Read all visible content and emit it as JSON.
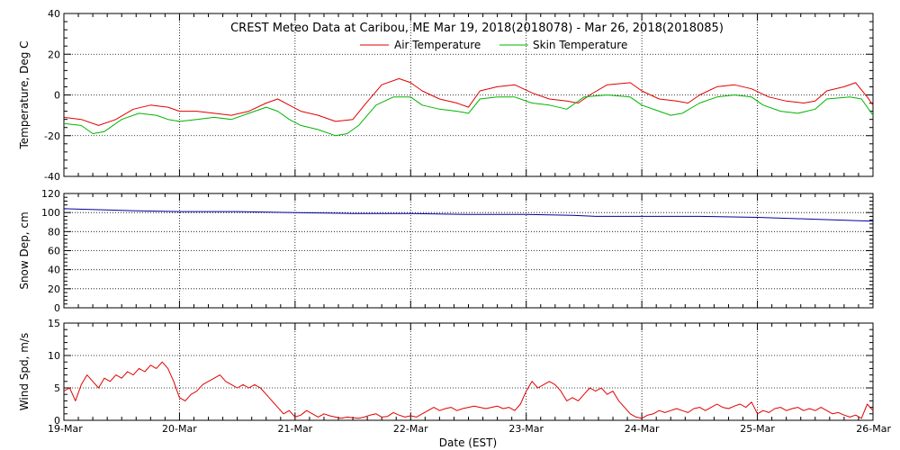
{
  "title": "CREST Meteo Data at Caribou, ME   Mar 19, 2018(2018078) - Mar 26, 2018(2018085)",
  "x_axis": {
    "label": "Date (EST)",
    "range_days": [
      0,
      7
    ],
    "ticks": [
      {
        "day": 0,
        "label": "19-Mar"
      },
      {
        "day": 1,
        "label": "20-Mar"
      },
      {
        "day": 2,
        "label": "21-Mar"
      },
      {
        "day": 3,
        "label": "22-Mar"
      },
      {
        "day": 4,
        "label": "23-Mar"
      },
      {
        "day": 5,
        "label": "24-Mar"
      },
      {
        "day": 6,
        "label": "25-Mar"
      },
      {
        "day": 7,
        "label": "26-Mar"
      }
    ]
  },
  "colors": {
    "air": "#e00000",
    "skin": "#00b400",
    "snow": "#0000a0",
    "wind": "#e00000",
    "grid": "#000000"
  },
  "chart_data": [
    {
      "type": "line",
      "panel": "temperature",
      "ylabel": "Temperature, Deg C",
      "ylim": [
        -40,
        40
      ],
      "yticks": [
        -40,
        -20,
        0,
        20,
        40
      ],
      "legend": [
        "Air Temperature",
        "Skin Temperature"
      ],
      "legend_placement": "top-center",
      "grid": true,
      "series": [
        {
          "name": "Air Temperature",
          "color": "#e00000",
          "points": [
            [
              0,
              -11
            ],
            [
              0.15,
              -12
            ],
            [
              0.3,
              -15
            ],
            [
              0.45,
              -12
            ],
            [
              0.6,
              -7
            ],
            [
              0.75,
              -5
            ],
            [
              0.9,
              -6
            ],
            [
              1.0,
              -8
            ],
            [
              1.15,
              -8
            ],
            [
              1.3,
              -9
            ],
            [
              1.45,
              -10
            ],
            [
              1.6,
              -8
            ],
            [
              1.75,
              -4
            ],
            [
              1.85,
              -2
            ],
            [
              1.95,
              -5
            ],
            [
              2.05,
              -8
            ],
            [
              2.2,
              -10
            ],
            [
              2.35,
              -13
            ],
            [
              2.5,
              -12
            ],
            [
              2.6,
              -5
            ],
            [
              2.75,
              5
            ],
            [
              2.9,
              8
            ],
            [
              3.0,
              6
            ],
            [
              3.1,
              2
            ],
            [
              3.25,
              -2
            ],
            [
              3.4,
              -4
            ],
            [
              3.5,
              -6
            ],
            [
              3.6,
              2
            ],
            [
              3.75,
              4
            ],
            [
              3.9,
              5
            ],
            [
              4.05,
              1
            ],
            [
              4.2,
              -2
            ],
            [
              4.35,
              -3
            ],
            [
              4.45,
              -4
            ],
            [
              4.55,
              0
            ],
            [
              4.7,
              5
            ],
            [
              4.9,
              6
            ],
            [
              5.0,
              2
            ],
            [
              5.15,
              -2
            ],
            [
              5.3,
              -3
            ],
            [
              5.4,
              -4
            ],
            [
              5.5,
              0
            ],
            [
              5.65,
              4
            ],
            [
              5.8,
              5
            ],
            [
              5.95,
              3
            ],
            [
              6.1,
              -1
            ],
            [
              6.25,
              -3
            ],
            [
              6.4,
              -4
            ],
            [
              6.5,
              -3
            ],
            [
              6.6,
              2
            ],
            [
              6.75,
              4
            ],
            [
              6.85,
              6
            ],
            [
              6.95,
              -1
            ],
            [
              7.0,
              -5
            ]
          ]
        },
        {
          "name": "Skin Temperature",
          "color": "#00b400",
          "points": [
            [
              0,
              -14
            ],
            [
              0.15,
              -15
            ],
            [
              0.25,
              -19
            ],
            [
              0.35,
              -18
            ],
            [
              0.5,
              -12
            ],
            [
              0.65,
              -9
            ],
            [
              0.8,
              -10
            ],
            [
              0.9,
              -12
            ],
            [
              1.0,
              -13
            ],
            [
              1.15,
              -12
            ],
            [
              1.3,
              -11
            ],
            [
              1.45,
              -12
            ],
            [
              1.6,
              -9
            ],
            [
              1.75,
              -6
            ],
            [
              1.85,
              -8
            ],
            [
              1.95,
              -12
            ],
            [
              2.05,
              -15
            ],
            [
              2.2,
              -17
            ],
            [
              2.35,
              -20
            ],
            [
              2.45,
              -19
            ],
            [
              2.55,
              -15
            ],
            [
              2.7,
              -5
            ],
            [
              2.85,
              -1
            ],
            [
              3.0,
              -1
            ],
            [
              3.1,
              -5
            ],
            [
              3.25,
              -7
            ],
            [
              3.4,
              -8
            ],
            [
              3.5,
              -9
            ],
            [
              3.6,
              -2
            ],
            [
              3.75,
              -1
            ],
            [
              3.9,
              -1
            ],
            [
              4.05,
              -4
            ],
            [
              4.2,
              -5
            ],
            [
              4.35,
              -7
            ],
            [
              4.5,
              -1
            ],
            [
              4.7,
              0
            ],
            [
              4.9,
              -1
            ],
            [
              5.0,
              -5
            ],
            [
              5.15,
              -8
            ],
            [
              5.25,
              -10
            ],
            [
              5.35,
              -9
            ],
            [
              5.5,
              -4
            ],
            [
              5.65,
              -1
            ],
            [
              5.8,
              0
            ],
            [
              5.95,
              -1
            ],
            [
              6.05,
              -5
            ],
            [
              6.2,
              -8
            ],
            [
              6.35,
              -9
            ],
            [
              6.5,
              -7
            ],
            [
              6.6,
              -2
            ],
            [
              6.8,
              -1
            ],
            [
              6.9,
              -2
            ],
            [
              7.0,
              -10
            ]
          ]
        }
      ]
    },
    {
      "type": "line",
      "panel": "snow_depth",
      "ylabel": "Snow Dep, cm",
      "ylim": [
        0,
        120
      ],
      "yticks": [
        0,
        20,
        40,
        60,
        80,
        100,
        120
      ],
      "grid": true,
      "series": [
        {
          "color": "#0000a0",
          "points": [
            [
              0,
              104
            ],
            [
              0.3,
              103
            ],
            [
              0.6,
              102
            ],
            [
              1.0,
              101
            ],
            [
              1.5,
              101
            ],
            [
              2.0,
              100
            ],
            [
              2.5,
              99
            ],
            [
              3.0,
              99
            ],
            [
              3.5,
              98
            ],
            [
              4.0,
              98
            ],
            [
              4.4,
              97
            ],
            [
              4.6,
              96
            ],
            [
              5.0,
              96
            ],
            [
              5.5,
              96
            ],
            [
              6.0,
              95
            ],
            [
              6.5,
              93
            ],
            [
              7.0,
              91
            ]
          ]
        }
      ]
    },
    {
      "type": "line",
      "panel": "wind_speed",
      "ylabel": "Wind Spd, m/s",
      "ylim": [
        0,
        15
      ],
      "yticks": [
        0,
        5,
        10,
        15
      ],
      "grid": true,
      "series": [
        {
          "color": "#e00000",
          "points": [
            [
              0,
              4.5
            ],
            [
              0.05,
              5
            ],
            [
              0.1,
              3
            ],
            [
              0.15,
              5.5
            ],
            [
              0.2,
              7
            ],
            [
              0.25,
              6
            ],
            [
              0.3,
              5
            ],
            [
              0.35,
              6.5
            ],
            [
              0.4,
              6
            ],
            [
              0.45,
              7
            ],
            [
              0.5,
              6.5
            ],
            [
              0.55,
              7.5
            ],
            [
              0.6,
              7
            ],
            [
              0.65,
              8
            ],
            [
              0.7,
              7.5
            ],
            [
              0.75,
              8.5
            ],
            [
              0.8,
              8
            ],
            [
              0.85,
              9
            ],
            [
              0.9,
              8
            ],
            [
              0.95,
              6
            ],
            [
              1.0,
              3.5
            ],
            [
              1.05,
              3
            ],
            [
              1.1,
              4
            ],
            [
              1.15,
              4.5
            ],
            [
              1.2,
              5.5
            ],
            [
              1.25,
              6
            ],
            [
              1.3,
              6.5
            ],
            [
              1.35,
              7
            ],
            [
              1.4,
              6
            ],
            [
              1.45,
              5.5
            ],
            [
              1.5,
              5
            ],
            [
              1.55,
              5.5
            ],
            [
              1.6,
              5
            ],
            [
              1.65,
              5.5
            ],
            [
              1.7,
              5
            ],
            [
              1.75,
              4
            ],
            [
              1.8,
              3
            ],
            [
              1.85,
              2
            ],
            [
              1.9,
              1
            ],
            [
              1.95,
              1.5
            ],
            [
              2.0,
              0.5
            ],
            [
              2.05,
              0.8
            ],
            [
              2.1,
              1.5
            ],
            [
              2.15,
              1
            ],
            [
              2.2,
              0.5
            ],
            [
              2.25,
              1
            ],
            [
              2.3,
              0.7
            ],
            [
              2.35,
              0.5
            ],
            [
              2.4,
              0.3
            ],
            [
              2.45,
              0.5
            ],
            [
              2.5,
              0.4
            ],
            [
              2.55,
              0.3
            ],
            [
              2.6,
              0.5
            ],
            [
              2.65,
              0.8
            ],
            [
              2.7,
              1
            ],
            [
              2.75,
              0.5
            ],
            [
              2.8,
              0.6
            ],
            [
              2.85,
              1.2
            ],
            [
              2.9,
              0.8
            ],
            [
              2.95,
              0.5
            ],
            [
              3.0,
              0.7
            ],
            [
              3.05,
              0.5
            ],
            [
              3.1,
              1
            ],
            [
              3.15,
              1.5
            ],
            [
              3.2,
              2
            ],
            [
              3.25,
              1.5
            ],
            [
              3.3,
              1.8
            ],
            [
              3.35,
              2
            ],
            [
              3.4,
              1.5
            ],
            [
              3.45,
              1.8
            ],
            [
              3.5,
              2
            ],
            [
              3.55,
              2.2
            ],
            [
              3.6,
              2
            ],
            [
              3.65,
              1.8
            ],
            [
              3.7,
              2
            ],
            [
              3.75,
              2.2
            ],
            [
              3.8,
              1.8
            ],
            [
              3.85,
              2
            ],
            [
              3.9,
              1.5
            ],
            [
              3.95,
              2.5
            ],
            [
              4.0,
              4.5
            ],
            [
              4.05,
              6
            ],
            [
              4.1,
              5
            ],
            [
              4.15,
              5.5
            ],
            [
              4.2,
              6
            ],
            [
              4.25,
              5.5
            ],
            [
              4.3,
              4.5
            ],
            [
              4.35,
              3
            ],
            [
              4.4,
              3.5
            ],
            [
              4.45,
              3
            ],
            [
              4.5,
              4
            ],
            [
              4.55,
              5
            ],
            [
              4.6,
              4.5
            ],
            [
              4.65,
              5
            ],
            [
              4.7,
              4
            ],
            [
              4.75,
              4.5
            ],
            [
              4.8,
              3
            ],
            [
              4.85,
              2
            ],
            [
              4.9,
              1
            ],
            [
              4.95,
              0.5
            ],
            [
              5.0,
              0.3
            ],
            [
              5.05,
              0.8
            ],
            [
              5.1,
              1
            ],
            [
              5.15,
              1.5
            ],
            [
              5.2,
              1.2
            ],
            [
              5.25,
              1.5
            ],
            [
              5.3,
              1.8
            ],
            [
              5.35,
              1.5
            ],
            [
              5.4,
              1.2
            ],
            [
              5.45,
              1.8
            ],
            [
              5.5,
              2
            ],
            [
              5.55,
              1.5
            ],
            [
              5.6,
              2
            ],
            [
              5.65,
              2.5
            ],
            [
              5.7,
              2
            ],
            [
              5.75,
              1.8
            ],
            [
              5.8,
              2.2
            ],
            [
              5.85,
              2.5
            ],
            [
              5.9,
              2
            ],
            [
              5.95,
              2.8
            ],
            [
              6.0,
              1
            ],
            [
              6.05,
              1.5
            ],
            [
              6.1,
              1.2
            ],
            [
              6.15,
              1.8
            ],
            [
              6.2,
              2
            ],
            [
              6.25,
              1.5
            ],
            [
              6.3,
              1.8
            ],
            [
              6.35,
              2
            ],
            [
              6.4,
              1.5
            ],
            [
              6.45,
              1.8
            ],
            [
              6.5,
              1.5
            ],
            [
              6.55,
              2
            ],
            [
              6.6,
              1.5
            ],
            [
              6.65,
              1
            ],
            [
              6.7,
              1.2
            ],
            [
              6.75,
              0.8
            ],
            [
              6.8,
              0.5
            ],
            [
              6.85,
              0.8
            ],
            [
              6.9,
              0.3
            ],
            [
              6.95,
              2.5
            ],
            [
              7.0,
              1.5
            ]
          ]
        }
      ]
    }
  ]
}
